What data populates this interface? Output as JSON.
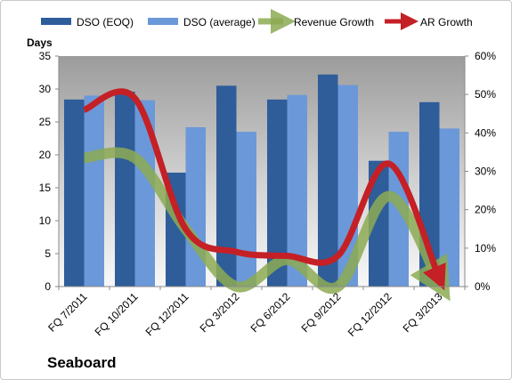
{
  "company_name": "Seaboard",
  "chart_data": {
    "type": "bar",
    "title": "",
    "categories": [
      "FQ 7/2011",
      "FQ 10/2011",
      "FQ 12/2011",
      "FQ 3/2012",
      "FQ 6/2012",
      "FQ 9/2012",
      "FQ 12/2012",
      "FQ 3/2013"
    ],
    "ylabel": "Days",
    "ylim": [
      0,
      35
    ],
    "yticks": [
      0,
      5,
      10,
      15,
      20,
      25,
      30,
      35
    ],
    "y2lim": [
      0,
      0.6
    ],
    "y2ticks": [
      "0%",
      "10%",
      "20%",
      "30%",
      "40%",
      "50%",
      "60%"
    ],
    "series": [
      {
        "name": "DSO (EOQ)",
        "type": "bar",
        "axis": "left",
        "color": "#2e5d9a",
        "values": [
          28.4,
          29.6,
          17.3,
          30.5,
          28.4,
          32.2,
          19.1,
          28.0
        ]
      },
      {
        "name": "DSO (average)",
        "type": "bar",
        "axis": "left",
        "color": "#6b98d8",
        "values": [
          29.0,
          28.3,
          24.2,
          23.5,
          29.1,
          30.6,
          23.5,
          24.0
        ]
      },
      {
        "name": "Revenue Growth",
        "type": "line",
        "axis": "right",
        "color": "#8caa52",
        "values": [
          0.335,
          0.335,
          0.15,
          0.0,
          0.07,
          0.0,
          0.235,
          0.01
        ]
      },
      {
        "name": "AR Growth",
        "type": "line",
        "axis": "right",
        "color": "#c42026",
        "values": [
          0.46,
          0.49,
          0.15,
          0.09,
          0.08,
          0.08,
          0.32,
          0.02
        ]
      }
    ],
    "legend_position": "top",
    "grid": false
  }
}
